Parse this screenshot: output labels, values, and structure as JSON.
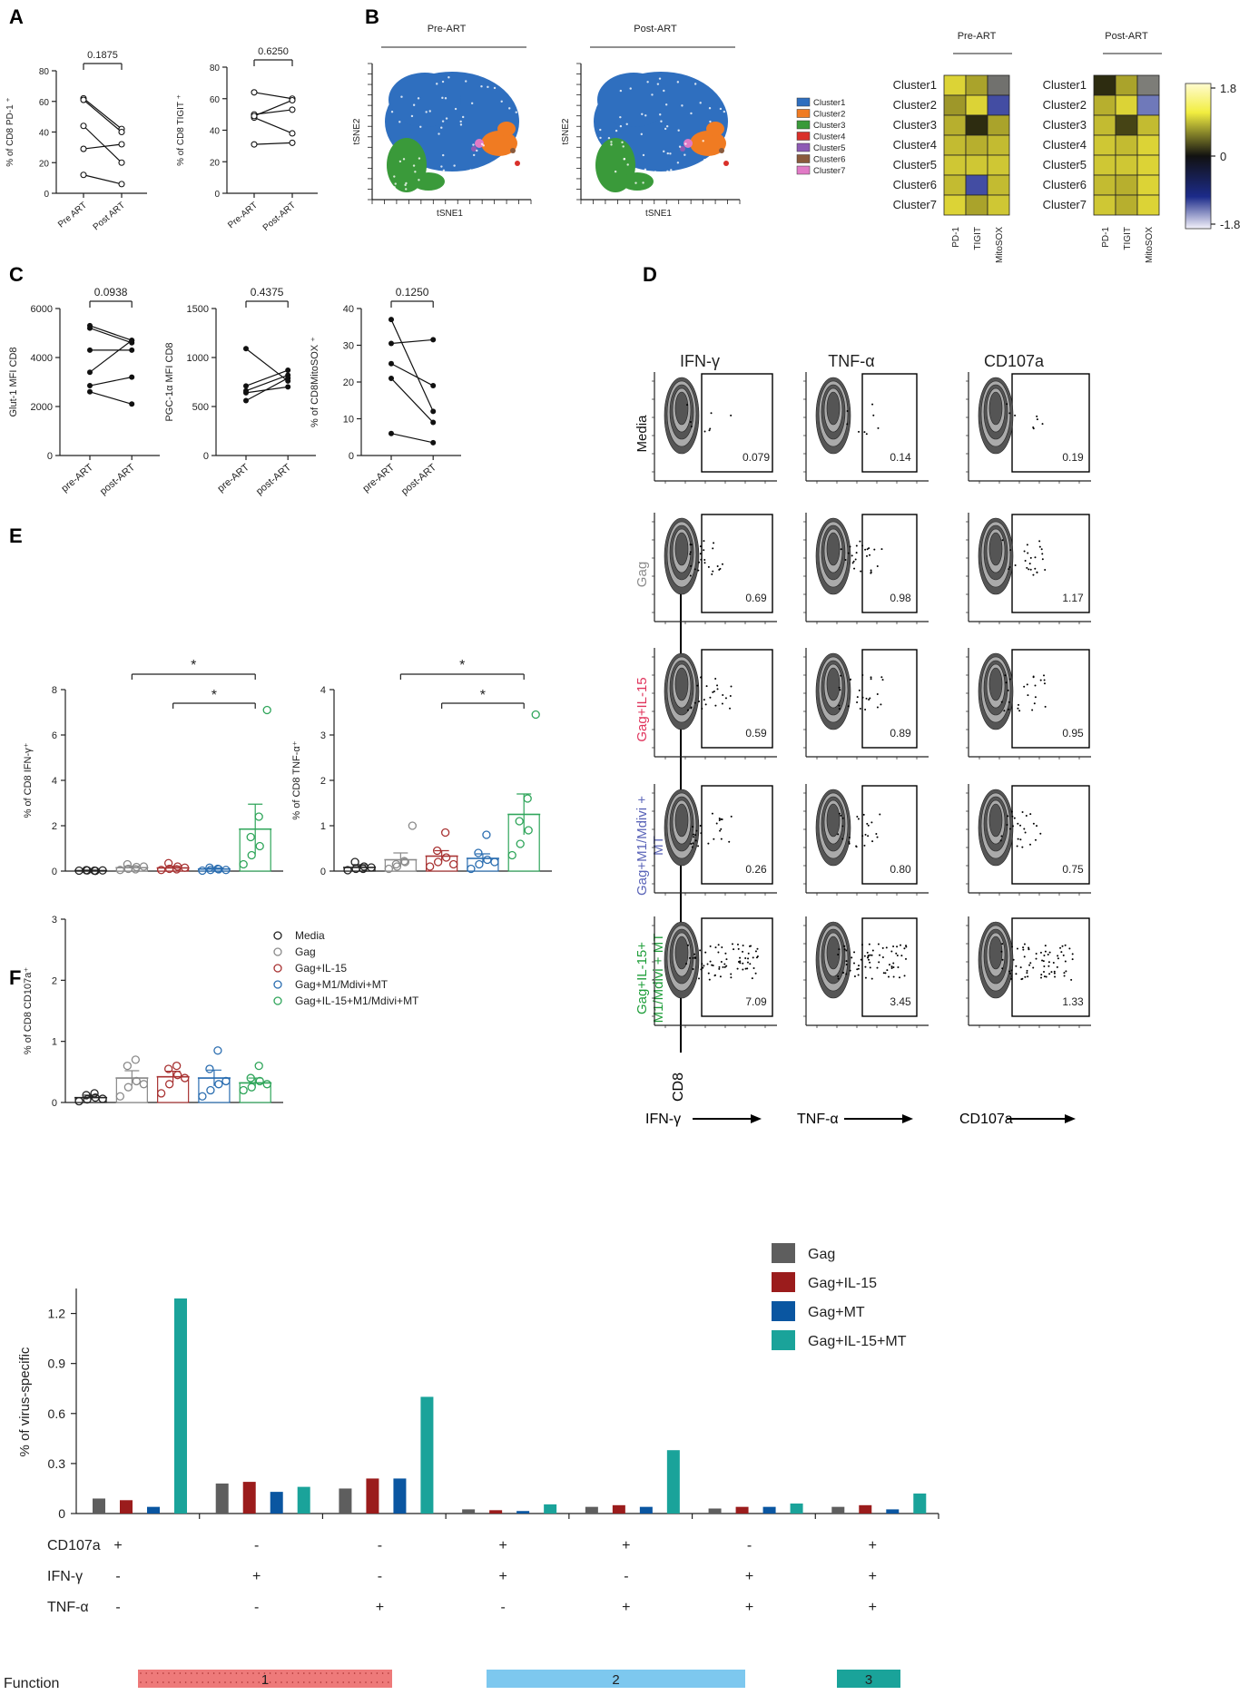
{
  "panel_labels": [
    "A",
    "B",
    "C",
    "D",
    "E",
    "F"
  ],
  "panelA": {
    "plots": [
      {
        "ylabel": "% of CD8 PD-1 ⁺",
        "p": "0.1875",
        "ylim": [
          0,
          80
        ],
        "yticks": [
          0,
          20,
          40,
          60,
          80
        ],
        "xcats": [
          "Pre ART",
          "Post ART"
        ],
        "pairs": [
          [
            62,
            42
          ],
          [
            61,
            40
          ],
          [
            44,
            20
          ],
          [
            29,
            32
          ],
          [
            12,
            6
          ]
        ]
      },
      {
        "ylabel": "% of CD8 TIGIT ⁺",
        "p": "0.6250",
        "ylim": [
          0,
          80
        ],
        "yticks": [
          0,
          20,
          40,
          60,
          80
        ],
        "xcats": [
          "Pre-ART",
          "Post-ART"
        ],
        "pairs": [
          [
            64,
            60
          ],
          [
            50,
            53
          ],
          [
            48,
            38
          ],
          [
            31,
            32
          ],
          [
            49,
            59
          ]
        ]
      }
    ]
  },
  "panelB": {
    "tsne_titles": [
      "Pre-ART",
      "Post-ART"
    ],
    "tsne_xlabel": "tSNE1",
    "tsne_ylabel": "tSNE2",
    "clusters": [
      "Cluster1",
      "Cluster2",
      "Cluster3",
      "Cluster4",
      "Cluster5",
      "Cluster6",
      "Cluster7"
    ],
    "cluster_colors": [
      "#2f6fbf",
      "#f07b22",
      "#3a9a3a",
      "#d9302a",
      "#8e5bb5",
      "#8a5a3c",
      "#e17ac6"
    ],
    "heatmap_titles": [
      "Pre-ART",
      "Post-ART"
    ],
    "heatmap_cols": [
      "PD-1",
      "TIGIT",
      "MitoSOX"
    ],
    "heatmap_pre": [
      [
        1.6,
        1.2,
        -0.8
      ],
      [
        1.1,
        1.6,
        -1.2
      ],
      [
        1.3,
        0.2,
        1.2
      ],
      [
        1.4,
        1.3,
        1.4
      ],
      [
        1.5,
        1.5,
        1.5
      ],
      [
        1.4,
        -1.2,
        1.4
      ],
      [
        1.6,
        1.2,
        1.5
      ]
    ],
    "heatmap_post": [
      [
        0.2,
        1.2,
        -0.9
      ],
      [
        1.3,
        1.6,
        -1.4
      ],
      [
        1.4,
        0.4,
        1.4
      ],
      [
        1.5,
        1.4,
        1.6
      ],
      [
        1.5,
        1.5,
        1.6
      ],
      [
        1.4,
        1.3,
        1.6
      ],
      [
        1.5,
        1.3,
        1.6
      ]
    ],
    "scale_labels": [
      "1.8",
      "0",
      "-1.8"
    ]
  },
  "panelC": {
    "plots": [
      {
        "ylabel": "Glut-1 MFI CD8",
        "p": "0.0938",
        "ylim": [
          0,
          6000
        ],
        "yticks": [
          0,
          2000,
          4000,
          6000
        ],
        "xcats": [
          "pre-ART",
          "post-ART"
        ],
        "pairs": [
          [
            5300,
            4700
          ],
          [
            5200,
            4600
          ],
          [
            4300,
            4300
          ],
          [
            3400,
            4700
          ],
          [
            2850,
            3200
          ],
          [
            2600,
            2100
          ]
        ]
      },
      {
        "ylabel": "PGC-1α MFI CD8",
        "p": "0.4375",
        "ylim": [
          0,
          1500
        ],
        "yticks": [
          0,
          500,
          1000,
          1500
        ],
        "xcats": [
          "pre-ART",
          "post-ART"
        ],
        "pairs": [
          [
            1090,
            760
          ],
          [
            710,
            870
          ],
          [
            660,
            820
          ],
          [
            640,
            700
          ],
          [
            560,
            790
          ]
        ]
      },
      {
        "ylabel": "% of CD8MitoSOX ⁺",
        "p": "0.1250",
        "ylim": [
          0,
          40
        ],
        "yticks": [
          0,
          10,
          20,
          30,
          40
        ],
        "xcats": [
          "pre-ART",
          "post-ART"
        ],
        "pairs": [
          [
            37,
            12
          ],
          [
            30.5,
            31.5
          ],
          [
            25,
            19
          ],
          [
            21,
            9
          ],
          [
            6,
            3.5
          ]
        ]
      }
    ]
  },
  "panelD": {
    "col_titles": [
      "IFN-γ",
      "TNF-α",
      "CD107a"
    ],
    "row_labels": [
      "Media",
      "Gag",
      "Gag+IL-15",
      "Gag+M1/Mdivi + MT",
      "Gag+IL-15+ M1/Mdivi + MT"
    ],
    "row_colors": [
      "#111111",
      "#8c8c8c",
      "#e0345c",
      "#5a64b8",
      "#1f9e3a"
    ],
    "values": [
      [
        "0.079",
        "0.14",
        "0.19"
      ],
      [
        "0.69",
        "0.98",
        "1.17"
      ],
      [
        "0.59",
        "0.89",
        "0.95"
      ],
      [
        "0.26",
        "0.80",
        "0.75"
      ],
      [
        "7.09",
        "3.45",
        "1.33"
      ]
    ],
    "yaxis_label": "CD8",
    "x_labels": [
      "IFN-γ",
      "TNF-α",
      "CD107a"
    ]
  },
  "panelE": {
    "groups": [
      "Media",
      "Gag",
      "Gag+IL-15",
      "Gag+M1/Mdivi+MT",
      "Gag+IL-15+M1/Mdivi+MT"
    ],
    "group_colors": [
      "#222222",
      "#8a8a8a",
      "#a83232",
      "#2a6db0",
      "#2fa55a"
    ],
    "sig_mark": "*",
    "plots": [
      {
        "ylabel": "% of CD8 IFN-γ⁺",
        "ylim": [
          0,
          8
        ],
        "yticks": [
          0,
          2,
          4,
          6,
          8
        ],
        "means": [
          0.02,
          0.15,
          0.14,
          0.09,
          1.85
        ],
        "sems": [
          0.02,
          0.07,
          0.07,
          0.04,
          1.1
        ],
        "points": [
          [
            0.02,
            0.03,
            0.01,
            0.04,
            0.02,
            0.03
          ],
          [
            0.05,
            0.1,
            0.18,
            0.3,
            0.08,
            0.2
          ],
          [
            0.05,
            0.1,
            0.2,
            0.35,
            0.08,
            0.15
          ],
          [
            0.02,
            0.05,
            0.08,
            0.15,
            0.1,
            0.05
          ],
          [
            0.3,
            0.7,
            1.1,
            1.5,
            2.4,
            7.1
          ]
        ]
      },
      {
        "ylabel": "% of CD8 TNF-α⁺",
        "ylim": [
          0,
          4
        ],
        "yticks": [
          0,
          1,
          2,
          3,
          4
        ],
        "means": [
          0.08,
          0.25,
          0.33,
          0.28,
          1.25
        ],
        "sems": [
          0.06,
          0.15,
          0.12,
          0.1,
          0.45
        ],
        "points": [
          [
            0.02,
            0.05,
            0.1,
            0.2,
            0.05,
            0.08
          ],
          [
            0.05,
            0.1,
            0.2,
            0.15,
            0.22,
            1.0
          ],
          [
            0.1,
            0.2,
            0.3,
            0.45,
            0.85,
            0.15
          ],
          [
            0.05,
            0.15,
            0.25,
            0.4,
            0.8,
            0.2
          ],
          [
            0.35,
            0.6,
            0.9,
            1.1,
            1.6,
            3.45
          ]
        ]
      },
      {
        "ylabel": "% of CD8 CD107a⁺",
        "ylim": [
          0,
          3
        ],
        "yticks": [
          0,
          1,
          2,
          3
        ],
        "means": [
          0.08,
          0.4,
          0.42,
          0.4,
          0.32
        ],
        "sems": [
          0.04,
          0.12,
          0.09,
          0.13,
          0.08
        ],
        "points": [
          [
            0.02,
            0.05,
            0.08,
            0.12,
            0.15,
            0.06
          ],
          [
            0.1,
            0.25,
            0.35,
            0.6,
            0.7,
            0.3
          ],
          [
            0.15,
            0.3,
            0.45,
            0.55,
            0.6,
            0.4
          ],
          [
            0.1,
            0.2,
            0.3,
            0.55,
            0.85,
            0.35
          ],
          [
            0.2,
            0.25,
            0.35,
            0.4,
            0.6,
            0.3
          ]
        ]
      }
    ]
  },
  "panelF": {
    "ylabel": "% of virus-specific responses",
    "ylim": [
      0,
      1.35
    ],
    "yticks": [
      "0",
      "0.3",
      "0.6",
      "0.9",
      "1.2"
    ],
    "ytick_values": [
      0,
      0.3,
      0.6,
      0.9,
      1.2
    ],
    "series": [
      {
        "name": "Gag",
        "color": "#5e5e5e",
        "values": [
          0.09,
          0.18,
          0.15,
          0.025,
          0.04,
          0.03,
          0.04
        ]
      },
      {
        "name": "Gag+IL-15",
        "color": "#9b1c1c",
        "values": [
          0.08,
          0.19,
          0.21,
          0.02,
          0.05,
          0.04,
          0.05
        ]
      },
      {
        "name": "Gag+MT",
        "color": "#0a56a1",
        "values": [
          0.04,
          0.13,
          0.21,
          0.015,
          0.04,
          0.04,
          0.025
        ]
      },
      {
        "name": "Gag+IL-15+MT",
        "color": "#1aa39a",
        "values": [
          1.29,
          0.16,
          0.7,
          0.055,
          0.38,
          0.06,
          0.12
        ]
      }
    ],
    "row_names": [
      "CD107a",
      "IFN-γ",
      "TNF-α"
    ],
    "signs": [
      [
        "+",
        "-",
        "-"
      ],
      [
        "-",
        "+",
        "-"
      ],
      [
        "-",
        "-",
        "+"
      ],
      [
        "+",
        "+",
        "-"
      ],
      [
        "+",
        "-",
        "+"
      ],
      [
        "-",
        "+",
        "+"
      ],
      [
        "+",
        "+",
        "+"
      ]
    ],
    "function_label": "Function",
    "function_groups": [
      {
        "label": "1",
        "color": "#ee7a7a"
      },
      {
        "label": "2",
        "color": "#7dc8ef"
      },
      {
        "label": "3",
        "color": "#1aa39a"
      }
    ]
  }
}
